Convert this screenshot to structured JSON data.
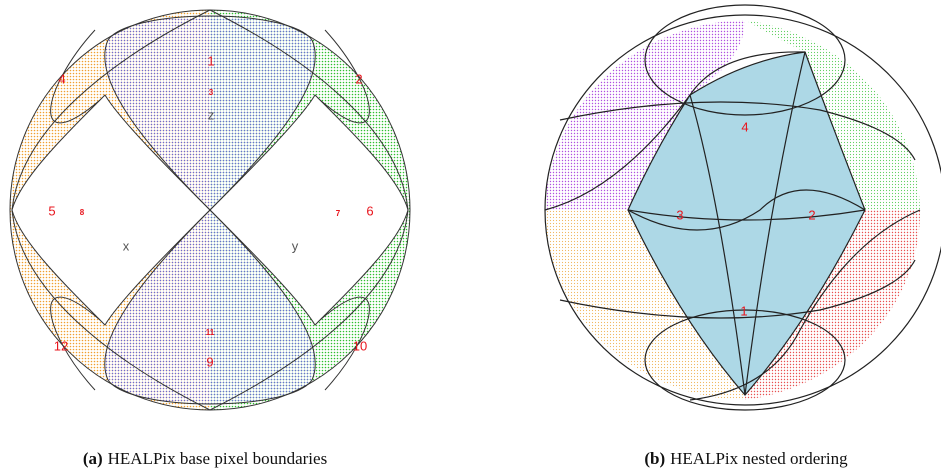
{
  "figure": {
    "panels": [
      {
        "caption": {
          "label": "(a)",
          "text": "HEALPix base pixel boundaries"
        },
        "labels": [
          {
            "text": "1"
          },
          {
            "text": "3"
          },
          {
            "text": "z"
          },
          {
            "text": "4"
          },
          {
            "text": "2"
          },
          {
            "text": "5"
          },
          {
            "text": "8"
          },
          {
            "text": "7"
          },
          {
            "text": "6"
          },
          {
            "text": "x"
          },
          {
            "text": "y"
          },
          {
            "text": "11"
          },
          {
            "text": "9"
          },
          {
            "text": "12"
          },
          {
            "text": "10"
          }
        ]
      },
      {
        "caption": {
          "label": "(b)",
          "text": "HEALPix nested ordering"
        },
        "labels": [
          {
            "text": "4"
          },
          {
            "text": "3"
          },
          {
            "text": "2"
          },
          {
            "text": "1"
          }
        ]
      }
    ]
  }
}
